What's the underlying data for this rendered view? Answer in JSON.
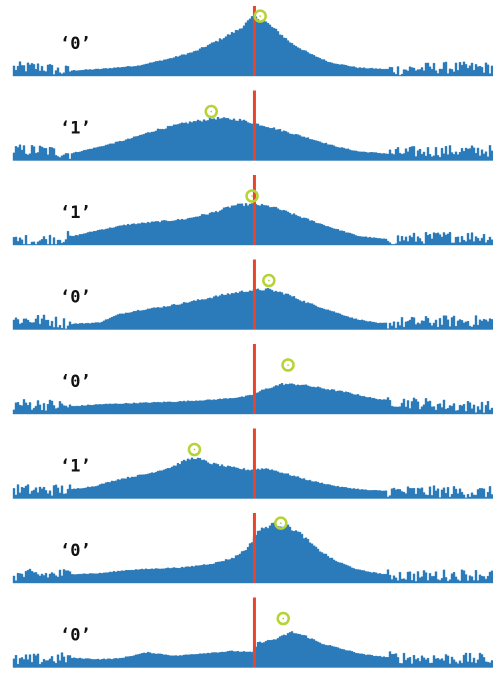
{
  "colors": {
    "histogram": "#2b7bba",
    "reference_line": "#e8452c",
    "marker": "#b5d334",
    "background": "#ffffff"
  },
  "chart_data": {
    "type": "area",
    "description_of_axes": "",
    "x_range": [
      0,
      1
    ],
    "y_range": [
      0,
      1
    ],
    "grid": false,
    "legend": "none",
    "reference_line_x": 0.503,
    "rows": [
      {
        "label": "‘0’",
        "marker": {
          "x": 0.515,
          "y": 0.88
        },
        "shape": [
          [
            0,
            0.12
          ],
          [
            0.06,
            0.13
          ],
          [
            0.1,
            0.07
          ],
          [
            0.18,
            0.1
          ],
          [
            0.26,
            0.15
          ],
          [
            0.33,
            0.26
          ],
          [
            0.38,
            0.36
          ],
          [
            0.43,
            0.53
          ],
          [
            0.47,
            0.68
          ],
          [
            0.5,
            0.86
          ],
          [
            0.52,
            0.83
          ],
          [
            0.55,
            0.66
          ],
          [
            0.58,
            0.48
          ],
          [
            0.62,
            0.32
          ],
          [
            0.66,
            0.2
          ],
          [
            0.72,
            0.12
          ],
          [
            0.8,
            0.09
          ],
          [
            0.88,
            0.12
          ],
          [
            0.95,
            0.12
          ],
          [
            1.0,
            0.12
          ]
        ],
        "noisy_tails": true
      },
      {
        "label": "‘1’",
        "marker": {
          "x": 0.413,
          "y": 0.72
        },
        "shape": [
          [
            0,
            0.15
          ],
          [
            0.06,
            0.15
          ],
          [
            0.12,
            0.1
          ],
          [
            0.18,
            0.2
          ],
          [
            0.24,
            0.31
          ],
          [
            0.3,
            0.45
          ],
          [
            0.36,
            0.55
          ],
          [
            0.42,
            0.62
          ],
          [
            0.47,
            0.6
          ],
          [
            0.5,
            0.55
          ],
          [
            0.53,
            0.5
          ],
          [
            0.57,
            0.42
          ],
          [
            0.62,
            0.32
          ],
          [
            0.67,
            0.21
          ],
          [
            0.72,
            0.13
          ],
          [
            0.78,
            0.1
          ],
          [
            0.85,
            0.13
          ],
          [
            0.92,
            0.14
          ],
          [
            1.0,
            0.14
          ]
        ],
        "noisy_tails": true
      },
      {
        "label": "‘1’",
        "marker": {
          "x": 0.498,
          "y": 0.72
        },
        "shape": [
          [
            0,
            0.06
          ],
          [
            0.06,
            0.07
          ],
          [
            0.12,
            0.12
          ],
          [
            0.18,
            0.22
          ],
          [
            0.24,
            0.3
          ],
          [
            0.3,
            0.34
          ],
          [
            0.36,
            0.38
          ],
          [
            0.42,
            0.48
          ],
          [
            0.46,
            0.58
          ],
          [
            0.5,
            0.6
          ],
          [
            0.54,
            0.56
          ],
          [
            0.58,
            0.46
          ],
          [
            0.62,
            0.36
          ],
          [
            0.67,
            0.24
          ],
          [
            0.72,
            0.13
          ],
          [
            0.78,
            0.08
          ],
          [
            0.85,
            0.1
          ],
          [
            0.92,
            0.12
          ],
          [
            1.0,
            0.12
          ]
        ],
        "noisy_tails": true
      },
      {
        "label": "‘0’",
        "marker": {
          "x": 0.533,
          "y": 0.72
        },
        "shape": [
          [
            0,
            0.14
          ],
          [
            0.06,
            0.14
          ],
          [
            0.12,
            0.08
          ],
          [
            0.18,
            0.1
          ],
          [
            0.22,
            0.22
          ],
          [
            0.26,
            0.28
          ],
          [
            0.32,
            0.34
          ],
          [
            0.38,
            0.42
          ],
          [
            0.44,
            0.51
          ],
          [
            0.49,
            0.57
          ],
          [
            0.53,
            0.59
          ],
          [
            0.57,
            0.52
          ],
          [
            0.61,
            0.4
          ],
          [
            0.66,
            0.28
          ],
          [
            0.71,
            0.16
          ],
          [
            0.76,
            0.09
          ],
          [
            0.82,
            0.1
          ],
          [
            0.9,
            0.12
          ],
          [
            1.0,
            0.12
          ]
        ],
        "noisy_tails": true
      },
      {
        "label": "‘0’",
        "marker": {
          "x": 0.573,
          "y": 0.72
        },
        "shape": [
          [
            0,
            0.14
          ],
          [
            0.06,
            0.14
          ],
          [
            0.12,
            0.11
          ],
          [
            0.18,
            0.14
          ],
          [
            0.26,
            0.16
          ],
          [
            0.34,
            0.18
          ],
          [
            0.42,
            0.21
          ],
          [
            0.48,
            0.25
          ],
          [
            0.5,
            0.28
          ],
          [
            0.52,
            0.35
          ],
          [
            0.56,
            0.44
          ],
          [
            0.6,
            0.43
          ],
          [
            0.65,
            0.37
          ],
          [
            0.7,
            0.31
          ],
          [
            0.75,
            0.23
          ],
          [
            0.8,
            0.18
          ],
          [
            0.86,
            0.15
          ],
          [
            0.92,
            0.12
          ],
          [
            1.0,
            0.1
          ]
        ],
        "noisy_tails": true
      },
      {
        "label": "‘1’",
        "marker": {
          "x": 0.378,
          "y": 0.72
        },
        "shape": [
          [
            0,
            0.13
          ],
          [
            0.06,
            0.12
          ],
          [
            0.12,
            0.13
          ],
          [
            0.17,
            0.18
          ],
          [
            0.22,
            0.28
          ],
          [
            0.28,
            0.36
          ],
          [
            0.33,
            0.46
          ],
          [
            0.36,
            0.56
          ],
          [
            0.38,
            0.6
          ],
          [
            0.41,
            0.52
          ],
          [
            0.45,
            0.46
          ],
          [
            0.49,
            0.42
          ],
          [
            0.53,
            0.44
          ],
          [
            0.57,
            0.36
          ],
          [
            0.62,
            0.26
          ],
          [
            0.68,
            0.17
          ],
          [
            0.74,
            0.12
          ],
          [
            0.82,
            0.1
          ],
          [
            0.9,
            0.1
          ],
          [
            1.0,
            0.09
          ]
        ],
        "noisy_tails": true
      },
      {
        "label": "‘0’",
        "marker": {
          "x": 0.558,
          "y": 0.88
        },
        "shape": [
          [
            0,
            0.11
          ],
          [
            0.06,
            0.12
          ],
          [
            0.12,
            0.13
          ],
          [
            0.18,
            0.14
          ],
          [
            0.24,
            0.19
          ],
          [
            0.3,
            0.21
          ],
          [
            0.36,
            0.23
          ],
          [
            0.42,
            0.29
          ],
          [
            0.46,
            0.37
          ],
          [
            0.49,
            0.52
          ],
          [
            0.51,
            0.76
          ],
          [
            0.54,
            0.86
          ],
          [
            0.57,
            0.84
          ],
          [
            0.6,
            0.72
          ],
          [
            0.63,
            0.52
          ],
          [
            0.67,
            0.33
          ],
          [
            0.72,
            0.19
          ],
          [
            0.78,
            0.12
          ],
          [
            0.86,
            0.1
          ],
          [
            0.93,
            0.12
          ],
          [
            1.0,
            0.12
          ]
        ],
        "noisy_tails": true
      },
      {
        "label": "‘0’",
        "marker": {
          "x": 0.563,
          "y": 0.72
        },
        "shape": [
          [
            0,
            0.1
          ],
          [
            0.06,
            0.12
          ],
          [
            0.12,
            0.14
          ],
          [
            0.18,
            0.12
          ],
          [
            0.22,
            0.13
          ],
          [
            0.28,
            0.22
          ],
          [
            0.34,
            0.17
          ],
          [
            0.4,
            0.21
          ],
          [
            0.46,
            0.24
          ],
          [
            0.5,
            0.22
          ],
          [
            0.51,
            0.36
          ],
          [
            0.55,
            0.42
          ],
          [
            0.58,
            0.52
          ],
          [
            0.61,
            0.46
          ],
          [
            0.64,
            0.36
          ],
          [
            0.68,
            0.28
          ],
          [
            0.73,
            0.19
          ],
          [
            0.78,
            0.15
          ],
          [
            0.84,
            0.14
          ],
          [
            0.9,
            0.13
          ],
          [
            1.0,
            0.12
          ]
        ],
        "noisy_tails": true
      }
    ]
  }
}
